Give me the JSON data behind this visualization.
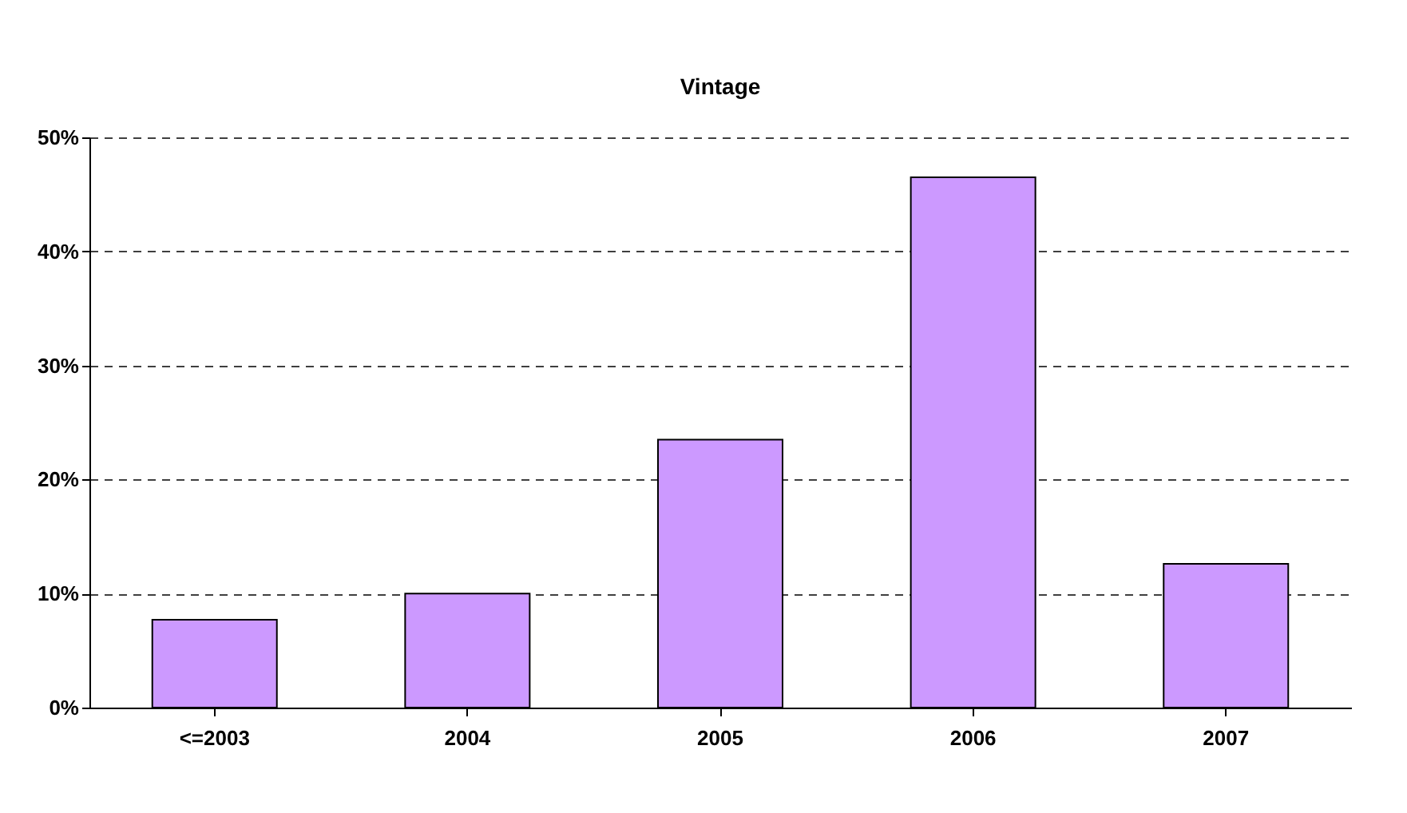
{
  "chart_data": {
    "type": "bar",
    "title": "Vintage",
    "categories": [
      "<=2003",
      "2004",
      "2005",
      "2006",
      "2007"
    ],
    "values": [
      7.7,
      10.0,
      23.5,
      46.5,
      12.6
    ],
    "color": "#cc99ff",
    "ylim": [
      0,
      50
    ],
    "yticks": [
      {
        "value": 0,
        "label": "0%"
      },
      {
        "value": 10,
        "label": "10%"
      },
      {
        "value": 20,
        "label": "20%"
      },
      {
        "value": 30,
        "label": "30%"
      },
      {
        "value": 40,
        "label": "40%"
      },
      {
        "value": 50,
        "label": "50%"
      }
    ],
    "grid": "y"
  }
}
